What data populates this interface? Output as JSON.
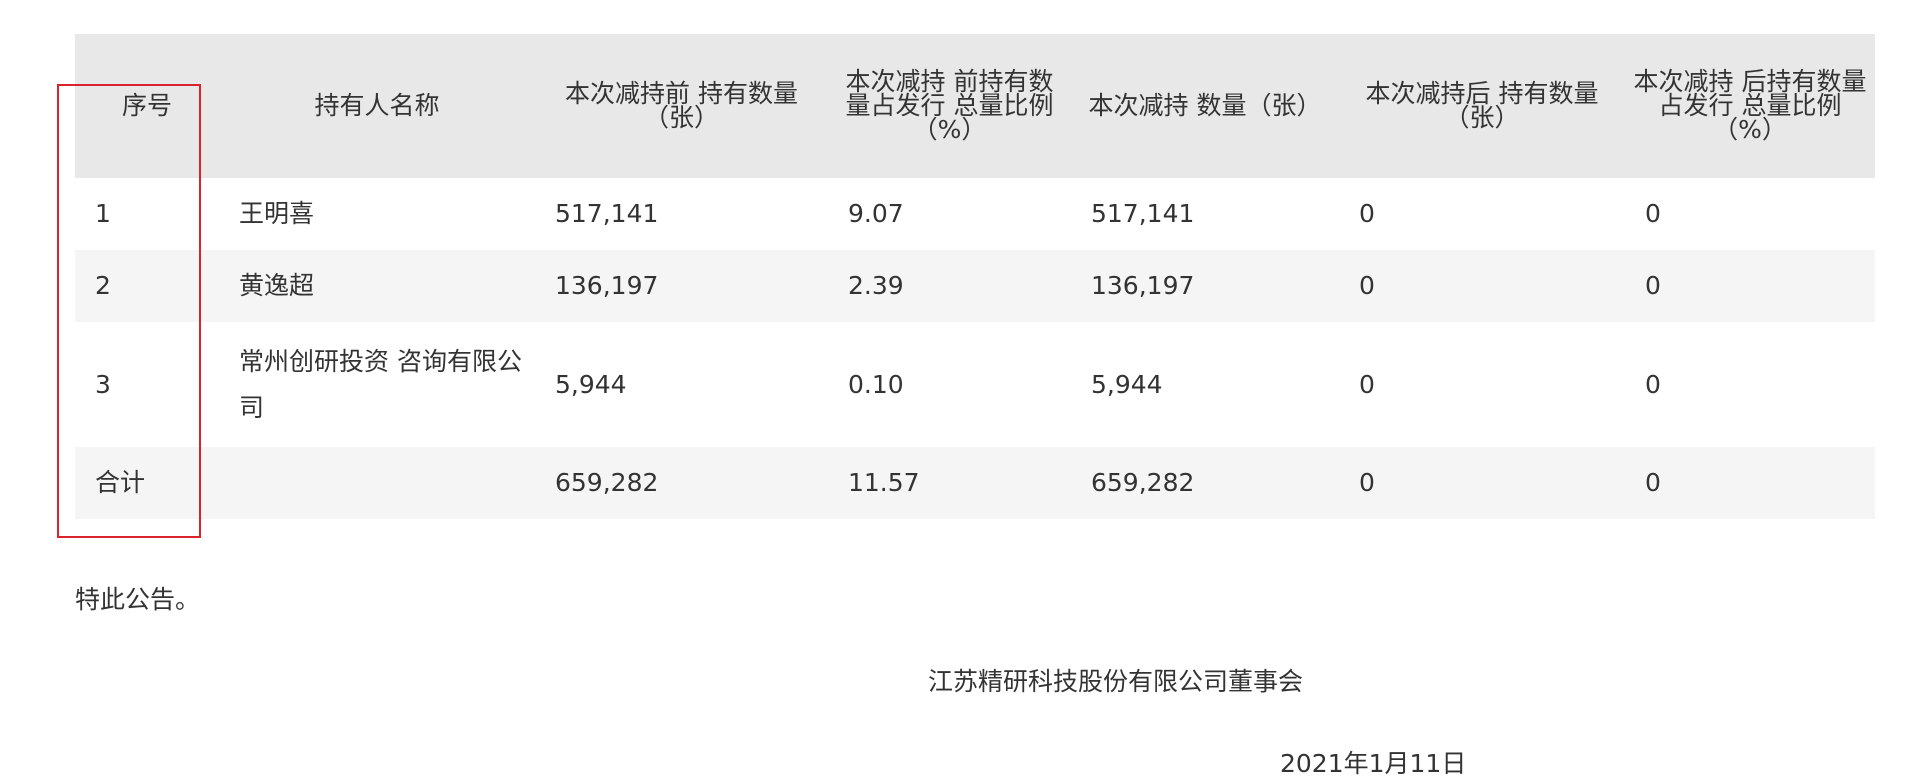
{
  "table": {
    "headers": [
      "序号",
      "持有人名称",
      "本次减持前 持有数量（张）",
      "本次减持 前持有数量占发行 总量比例（%）",
      "本次减持 数量（张）",
      "本次减持后 持有数量（张）",
      "本次减持 后持有数量占发行 总量比例（%）"
    ],
    "rows": [
      [
        "1",
        "王明喜",
        "517,141",
        "9.07",
        "517,141",
        "0",
        "0"
      ],
      [
        "2",
        "黄逸超",
        "136,197",
        "2.39",
        "136,197",
        "0",
        "0"
      ],
      [
        "3",
        "常州创研投资 咨询有限公司",
        "5,944",
        "0.10",
        "5,944",
        "0",
        "0"
      ]
    ],
    "total": {
      "label": "合计",
      "values": [
        "659,282",
        "11.57",
        "659,282",
        "0",
        "0"
      ]
    }
  },
  "closing": "特此公告。",
  "signature": {
    "company": "江苏精研科技股份有限公司董事会",
    "date": "2021年1月11日"
  }
}
